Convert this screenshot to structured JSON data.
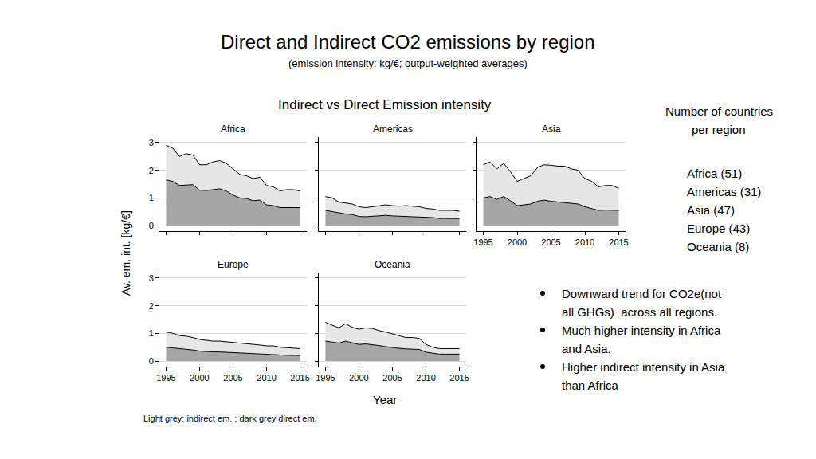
{
  "page": {
    "title": "Direct and Indirect CO2 emissions by region",
    "subtitle": "(emission intensity: kg/€; output-weighted averages)",
    "panel_title": "Indirect vs Direct Emission intensity",
    "ylabel": "Av. em. int. [kg/€]",
    "xlabel": "Year",
    "note": "Light grey: indirect em. ; dark grey direct em.",
    "side_heading": [
      "Number of countries",
      "per region"
    ],
    "counts": [
      "Africa (51)",
      "Americas (31)",
      "Asia (47)",
      "Europe (43)",
      "Oceania (8)"
    ],
    "bullets": [
      [
        "Downward trend for CO2e(not",
        "all GHGs)  across all regions."
      ],
      [
        "Much higher intensity in Africa",
        "and Asia."
      ],
      [
        "Higher indirect intensity in Asia",
        "than Africa"
      ]
    ]
  },
  "chart_data": [
    {
      "type": "area",
      "title": "Africa",
      "stacked": true,
      "grid": true,
      "tick_labels": "y",
      "x": [
        1995,
        1996,
        1997,
        1998,
        1999,
        2000,
        2001,
        2002,
        2003,
        2004,
        2005,
        2006,
        2007,
        2008,
        2009,
        2010,
        2011,
        2012,
        2013,
        2014,
        2015
      ],
      "xlim": [
        1994,
        2016
      ],
      "xticks": [
        1995,
        2000,
        2005,
        2010,
        2015
      ],
      "ylim": [
        -0.2,
        3.2
      ],
      "yticks": [
        0,
        1,
        2,
        3
      ],
      "series": [
        {
          "name": "direct em.",
          "color": "#a6a6a6",
          "values": [
            1.65,
            1.6,
            1.45,
            1.47,
            1.48,
            1.28,
            1.27,
            1.3,
            1.33,
            1.25,
            1.1,
            1.0,
            0.98,
            0.9,
            0.92,
            0.75,
            0.72,
            0.65,
            0.66,
            0.65,
            0.65
          ]
        },
        {
          "name": "indirect em.",
          "color": "#e6e6e6",
          "values": [
            1.25,
            1.2,
            1.05,
            1.13,
            1.07,
            0.92,
            0.93,
            1.0,
            1.02,
            1.0,
            0.95,
            0.85,
            0.82,
            0.8,
            0.83,
            0.7,
            0.68,
            0.6,
            0.64,
            0.65,
            0.6
          ]
        }
      ]
    },
    {
      "type": "area",
      "title": "Americas",
      "stacked": true,
      "grid": true,
      "tick_labels": false,
      "x": [
        1995,
        1996,
        1997,
        1998,
        1999,
        2000,
        2001,
        2002,
        2003,
        2004,
        2005,
        2006,
        2007,
        2008,
        2009,
        2010,
        2011,
        2012,
        2013,
        2014,
        2015
      ],
      "xlim": [
        1994,
        2016
      ],
      "xticks": [
        1995,
        2000,
        2005,
        2010,
        2015
      ],
      "ylim": [
        -0.2,
        3.2
      ],
      "yticks": [
        0,
        1,
        2,
        3
      ],
      "series": [
        {
          "name": "direct em.",
          "color": "#a6a6a6",
          "values": [
            0.55,
            0.5,
            0.45,
            0.42,
            0.4,
            0.33,
            0.32,
            0.33,
            0.36,
            0.37,
            0.35,
            0.34,
            0.35,
            0.34,
            0.33,
            0.3,
            0.29,
            0.26,
            0.26,
            0.26,
            0.25
          ]
        },
        {
          "name": "indirect em.",
          "color": "#e6e6e6",
          "values": [
            0.5,
            0.5,
            0.4,
            0.4,
            0.38,
            0.35,
            0.33,
            0.35,
            0.36,
            0.38,
            0.37,
            0.36,
            0.37,
            0.36,
            0.35,
            0.32,
            0.31,
            0.29,
            0.29,
            0.29,
            0.27
          ]
        }
      ]
    },
    {
      "type": "area",
      "title": "Asia",
      "stacked": true,
      "grid": true,
      "tick_labels": "x",
      "x": [
        1995,
        1996,
        1997,
        1998,
        1999,
        2000,
        2001,
        2002,
        2003,
        2004,
        2005,
        2006,
        2007,
        2008,
        2009,
        2010,
        2011,
        2012,
        2013,
        2014,
        2015
      ],
      "xlim": [
        1994,
        2016
      ],
      "xticks": [
        1995,
        2000,
        2005,
        2010,
        2015
      ],
      "ylim": [
        -0.2,
        3.2
      ],
      "yticks": [
        0,
        1,
        2,
        3
      ],
      "series": [
        {
          "name": "direct em.",
          "color": "#a6a6a6",
          "values": [
            1.0,
            1.05,
            0.95,
            1.05,
            0.9,
            0.72,
            0.75,
            0.78,
            0.88,
            0.92,
            0.88,
            0.86,
            0.84,
            0.8,
            0.78,
            0.68,
            0.62,
            0.55,
            0.56,
            0.56,
            0.55
          ]
        },
        {
          "name": "indirect em.",
          "color": "#e6e6e6",
          "values": [
            1.2,
            1.25,
            1.1,
            1.2,
            1.05,
            0.88,
            0.95,
            1.02,
            1.22,
            1.28,
            1.3,
            1.29,
            1.31,
            1.25,
            1.22,
            1.02,
            0.98,
            0.85,
            0.89,
            0.89,
            0.8
          ]
        }
      ]
    },
    {
      "type": "area",
      "title": "Europe",
      "stacked": true,
      "grid": true,
      "x": [
        1995,
        1996,
        1997,
        1998,
        1999,
        2000,
        2001,
        2002,
        2003,
        2004,
        2005,
        2006,
        2007,
        2008,
        2009,
        2010,
        2011,
        2012,
        2013,
        2014,
        2015
      ],
      "xlim": [
        1994,
        2016
      ],
      "xticks": [
        1995,
        2000,
        2005,
        2010,
        2015
      ],
      "ylim": [
        -0.2,
        3.2
      ],
      "yticks": [
        0,
        1,
        2,
        3
      ],
      "series": [
        {
          "name": "direct em.",
          "color": "#a6a6a6",
          "values": [
            0.5,
            0.48,
            0.45,
            0.43,
            0.4,
            0.36,
            0.34,
            0.33,
            0.33,
            0.32,
            0.3,
            0.29,
            0.28,
            0.27,
            0.26,
            0.24,
            0.24,
            0.22,
            0.21,
            0.21,
            0.2
          ]
        },
        {
          "name": "indirect em.",
          "color": "#e6e6e6",
          "values": [
            0.55,
            0.52,
            0.47,
            0.47,
            0.45,
            0.42,
            0.41,
            0.39,
            0.39,
            0.38,
            0.38,
            0.36,
            0.34,
            0.33,
            0.32,
            0.31,
            0.31,
            0.28,
            0.27,
            0.27,
            0.25
          ]
        }
      ]
    },
    {
      "type": "area",
      "title": "Oceania",
      "stacked": true,
      "grid": true,
      "tick_labels": "x",
      "x": [
        1995,
        1996,
        1997,
        1998,
        1999,
        2000,
        2001,
        2002,
        2003,
        2004,
        2005,
        2006,
        2007,
        2008,
        2009,
        2010,
        2011,
        2012,
        2013,
        2014,
        2015
      ],
      "xlim": [
        1994,
        2016
      ],
      "xticks": [
        1995,
        2000,
        2005,
        2010,
        2015
      ],
      "ylim": [
        -0.2,
        3.2
      ],
      "yticks": [
        0,
        1,
        2,
        3
      ],
      "series": [
        {
          "name": "direct em.",
          "color": "#a6a6a6",
          "values": [
            0.72,
            0.68,
            0.65,
            0.72,
            0.65,
            0.6,
            0.62,
            0.6,
            0.56,
            0.52,
            0.48,
            0.46,
            0.44,
            0.44,
            0.42,
            0.32,
            0.28,
            0.25,
            0.25,
            0.25,
            0.25
          ]
        },
        {
          "name": "indirect em.",
          "color": "#e6e6e6",
          "values": [
            0.68,
            0.62,
            0.55,
            0.63,
            0.57,
            0.55,
            0.58,
            0.58,
            0.54,
            0.53,
            0.5,
            0.44,
            0.41,
            0.41,
            0.4,
            0.28,
            0.22,
            0.2,
            0.2,
            0.2,
            0.2
          ]
        }
      ]
    }
  ]
}
